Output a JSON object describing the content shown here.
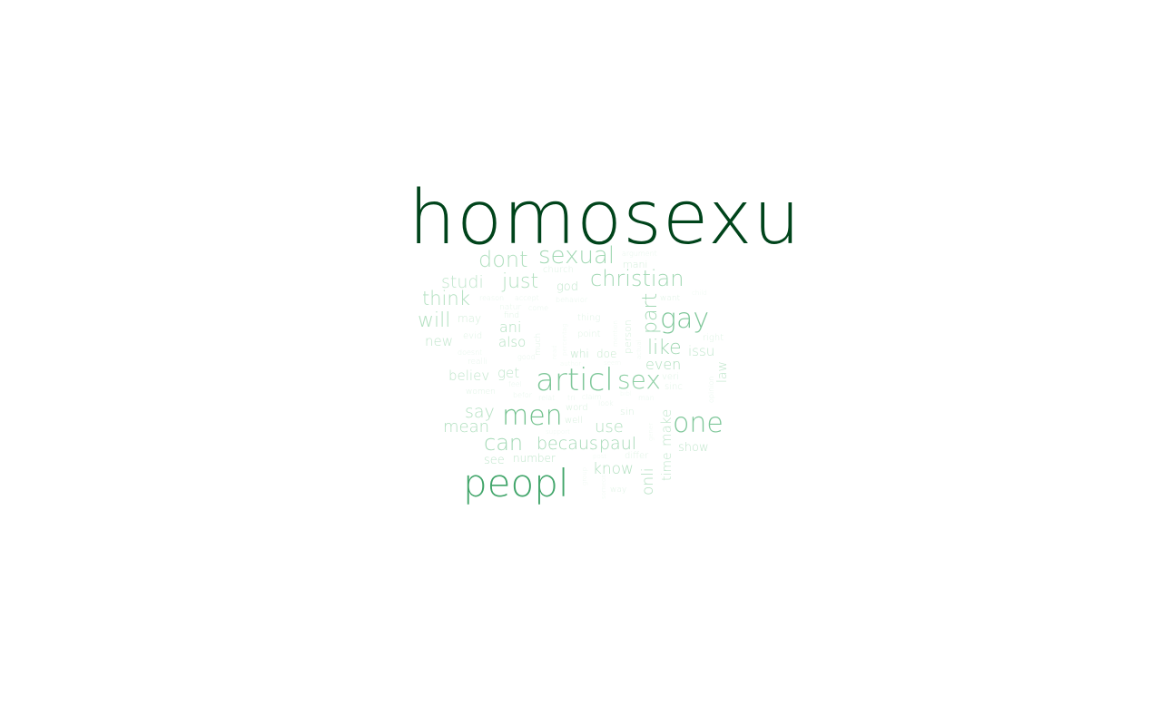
{
  "word_cloud": {
    "words": [
      {
        "text": "homosexu",
        "weight": 1.0,
        "color": "#00441b"
      },
      {
        "text": "peopl",
        "weight": 0.45,
        "color": "#41a56a"
      },
      {
        "text": "articl",
        "weight": 0.36,
        "color": "#7fc79a"
      },
      {
        "text": "men",
        "weight": 0.3,
        "color": "#74c28f"
      },
      {
        "text": "one",
        "weight": 0.3,
        "color": "#7fc79a"
      },
      {
        "text": "gay",
        "weight": 0.3,
        "color": "#7fc79a"
      },
      {
        "text": "sex",
        "weight": 0.28,
        "color": "#8fd0a6"
      },
      {
        "text": "sexual",
        "weight": 0.26,
        "color": "#a2d8b4"
      },
      {
        "text": "christian",
        "weight": 0.24,
        "color": "#a2d8b4"
      },
      {
        "text": "dont",
        "weight": 0.24,
        "color": "#b2e0c0"
      },
      {
        "text": "can",
        "weight": 0.24,
        "color": "#a2d8b4"
      },
      {
        "text": "just",
        "weight": 0.22,
        "color": "#b2e0c0"
      },
      {
        "text": "will",
        "weight": 0.22,
        "color": "#b2e0c0"
      },
      {
        "text": "think",
        "weight": 0.2,
        "color": "#b2e0c0"
      },
      {
        "text": "part",
        "weight": 0.22,
        "color": "#a2d8b4"
      },
      {
        "text": "like",
        "weight": 0.22,
        "color": "#a2d8b4"
      },
      {
        "text": "becaus",
        "weight": 0.19,
        "color": "#a2d8b4"
      },
      {
        "text": "paul",
        "weight": 0.19,
        "color": "#a2d8b4"
      },
      {
        "text": "say",
        "weight": 0.19,
        "color": "#b2e0c0"
      },
      {
        "text": "mean",
        "weight": 0.18,
        "color": "#b2e0c0"
      },
      {
        "text": "studi",
        "weight": 0.19,
        "color": "#c0e6cc"
      },
      {
        "text": "use",
        "weight": 0.18,
        "color": "#b2e0c0"
      },
      {
        "text": "know",
        "weight": 0.17,
        "color": "#b2e0c0"
      },
      {
        "text": "onli",
        "weight": 0.17,
        "color": "#b2e0c0"
      },
      {
        "text": "even",
        "weight": 0.16,
        "color": "#b2e0c0"
      },
      {
        "text": "ani",
        "weight": 0.16,
        "color": "#b2e0c0"
      },
      {
        "text": "new",
        "weight": 0.15,
        "color": "#c0e6cc"
      },
      {
        "text": "believ",
        "weight": 0.15,
        "color": "#c0e6cc"
      },
      {
        "text": "get",
        "weight": 0.15,
        "color": "#c0e6cc"
      },
      {
        "text": "also",
        "weight": 0.15,
        "color": "#b2e0c0"
      },
      {
        "text": "issu",
        "weight": 0.15,
        "color": "#c0e6cc"
      },
      {
        "text": "make",
        "weight": 0.15,
        "color": "#c0e6cc"
      },
      {
        "text": "time",
        "weight": 0.14,
        "color": "#c0e6cc"
      },
      {
        "text": "law",
        "weight": 0.14,
        "color": "#c0e6cc"
      },
      {
        "text": "show",
        "weight": 0.13,
        "color": "#c0e6cc"
      },
      {
        "text": "god",
        "weight": 0.13,
        "color": "#c0e6cc"
      },
      {
        "text": "see",
        "weight": 0.13,
        "color": "#c0e6cc"
      },
      {
        "text": "number",
        "weight": 0.12,
        "color": "#c0e6cc"
      },
      {
        "text": "whi",
        "weight": 0.12,
        "color": "#c0e6cc"
      },
      {
        "text": "doe",
        "weight": 0.12,
        "color": "#c8eacf"
      },
      {
        "text": "may",
        "weight": 0.12,
        "color": "#d5efdc"
      },
      {
        "text": "sin",
        "weight": 0.11,
        "color": "#d5efdc"
      },
      {
        "text": "person",
        "weight": 0.11,
        "color": "#d5efdc"
      },
      {
        "text": "mani",
        "weight": 0.11,
        "color": "#d5efdc"
      },
      {
        "text": "church",
        "weight": 0.1,
        "color": "#dff3e5"
      },
      {
        "text": "word",
        "weight": 0.1,
        "color": "#d5efdc"
      },
      {
        "text": "well",
        "weight": 0.1,
        "color": "#d5efdc"
      },
      {
        "text": "evid",
        "weight": 0.1,
        "color": "#dff3e5"
      },
      {
        "text": "point",
        "weight": 0.1,
        "color": "#dff3e5"
      },
      {
        "text": "thing",
        "weight": 0.1,
        "color": "#dff3e5"
      },
      {
        "text": "veri",
        "weight": 0.1,
        "color": "#dff3e5"
      },
      {
        "text": "right",
        "weight": 0.1,
        "color": "#dff3e5"
      },
      {
        "text": "sinc",
        "weight": 0.1,
        "color": "#dff3e5"
      },
      {
        "text": "differ",
        "weight": 0.1,
        "color": "#dff3e5"
      },
      {
        "text": "women",
        "weight": 0.09,
        "color": "#dff3e5"
      },
      {
        "text": "want",
        "weight": 0.09,
        "color": "#dff3e5"
      },
      {
        "text": "much",
        "weight": 0.09,
        "color": "#dff3e5"
      },
      {
        "text": "way",
        "weight": 0.09,
        "color": "#dff3e5"
      },
      {
        "text": "find",
        "weight": 0.09,
        "color": "#dff3e5"
      },
      {
        "text": "realli",
        "weight": 0.09,
        "color": "#e7f6ec"
      },
      {
        "text": "natur",
        "weight": 0.09,
        "color": "#e7f6ec"
      },
      {
        "text": "accept",
        "weight": 0.08,
        "color": "#e7f6ec"
      },
      {
        "text": "come",
        "weight": 0.08,
        "color": "#e7f6ec"
      },
      {
        "text": "reason",
        "weight": 0.08,
        "color": "#e7f6ec"
      },
      {
        "text": "argument",
        "weight": 0.08,
        "color": "#e7f6ec"
      },
      {
        "text": "behavior",
        "weight": 0.08,
        "color": "#e7f6ec"
      },
      {
        "text": "good",
        "weight": 0.08,
        "color": "#e7f6ec"
      },
      {
        "text": "feel",
        "weight": 0.08,
        "color": "#e7f6ec"
      },
      {
        "text": "befor",
        "weight": 0.08,
        "color": "#e7f6ec"
      },
      {
        "text": "relat",
        "weight": 0.08,
        "color": "#e7f6ec"
      },
      {
        "text": "tri",
        "weight": 0.08,
        "color": "#e7f6ec"
      },
      {
        "text": "claim",
        "weight": 0.08,
        "color": "#e7f6ec"
      },
      {
        "text": "look",
        "weight": 0.08,
        "color": "#e7f6ec"
      },
      {
        "text": "man",
        "weight": 0.08,
        "color": "#e7f6ec"
      },
      {
        "text": "doesnt",
        "weight": 0.08,
        "color": "#e7f6ec"
      },
      {
        "text": "opinion",
        "weight": 0.08,
        "color": "#e7f6ec"
      },
      {
        "text": "child",
        "weight": 0.07,
        "color": "#eef9f1"
      },
      {
        "text": "group",
        "weight": 0.07,
        "color": "#eef9f1"
      },
      {
        "text": "gener",
        "weight": 0.07,
        "color": "#eef9f1"
      },
      {
        "text": "post",
        "weight": 0.07,
        "color": "#eef9f1"
      },
      {
        "text": "seem",
        "weight": 0.07,
        "color": "#eef9f1"
      },
      {
        "text": "actual",
        "weight": 0.07,
        "color": "#eef9f1"
      },
      {
        "text": "author",
        "weight": 0.07,
        "color": "#eef9f1"
      },
      {
        "text": "bibl",
        "weight": 0.07,
        "color": "#eef9f1"
      },
      {
        "text": "percentag",
        "weight": 0.07,
        "color": "#eef9f1"
      },
      {
        "text": "read",
        "weight": 0.07,
        "color": "#eef9f1"
      },
      {
        "text": "support",
        "weight": 0.07,
        "color": "#eef9f1"
      },
      {
        "text": "someon",
        "weight": 0.07,
        "color": "#eef9f1"
      },
      {
        "text": "mention",
        "weight": 0.07,
        "color": "#eef9f1"
      }
    ]
  }
}
